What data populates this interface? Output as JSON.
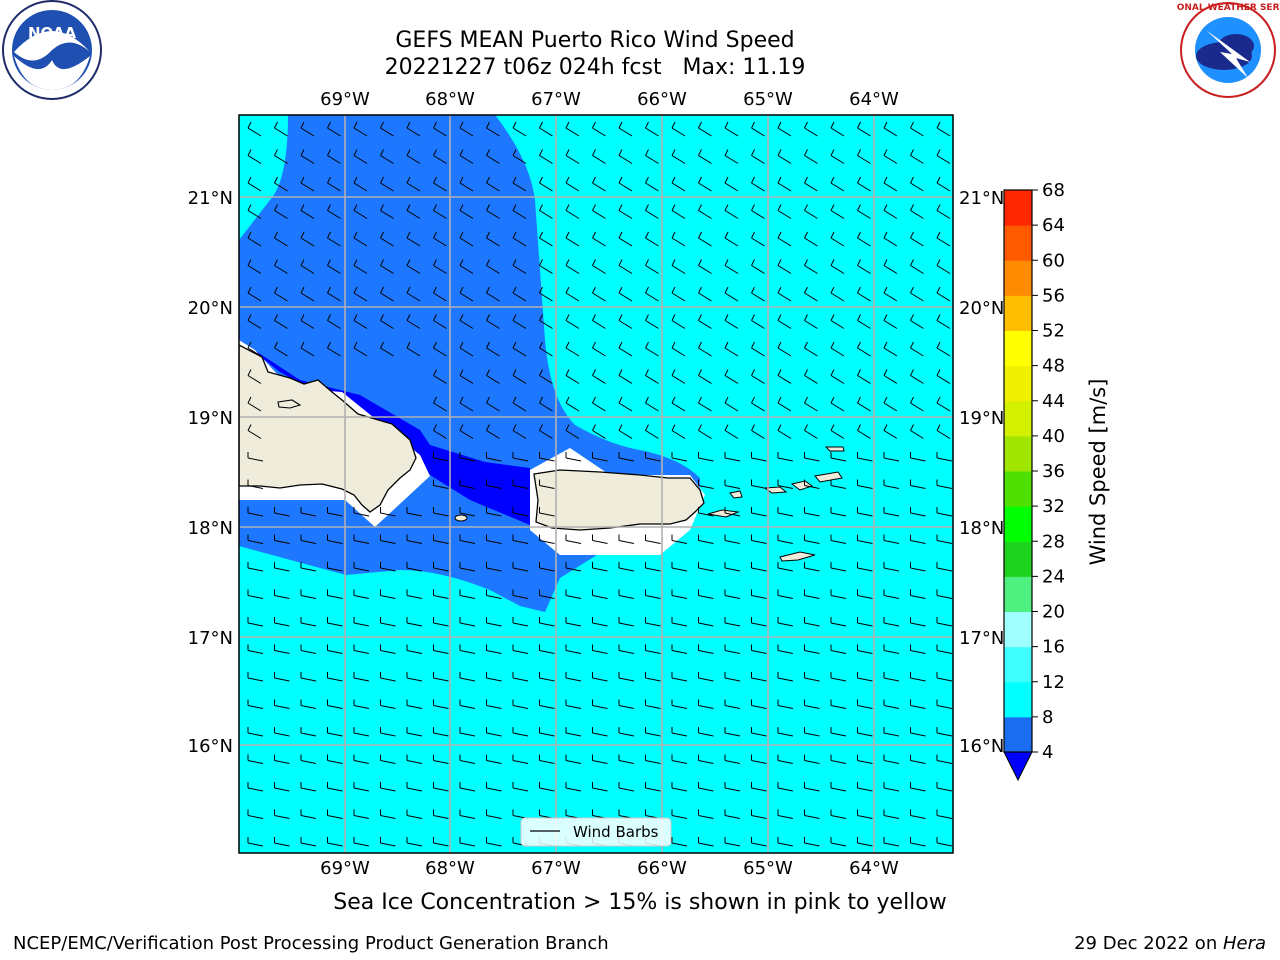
{
  "title_line1": "GEFS MEAN Puerto Rico Wind Speed",
  "title_line2": "20221227 t06z 024h fcst   Max: 11.19",
  "caption": "Sea Ice Concentration > 15% is shown in pink to yellow",
  "footer_left": "NCEP/EMC/Verification Post Processing Product Generation Branch",
  "footer_date": "29 Dec 2022 on ",
  "footer_host": "Hera",
  "logo_left_text": "NOAA",
  "logo_right_text": "NATIONAL WEATHER SERVICE",
  "legend_label": "Wind Barbs",
  "colorbar": {
    "label": "Wind Speed [m/s]",
    "ticks": [
      "4",
      "8",
      "12",
      "16",
      "20",
      "24",
      "28",
      "32",
      "36",
      "40",
      "44",
      "48",
      "52",
      "56",
      "60",
      "64",
      "68"
    ],
    "colors": [
      "#1a6df0",
      "#00ffff",
      "#40ffff",
      "#a0ffff",
      "#50f080",
      "#1ed21e",
      "#00ff00",
      "#50e000",
      "#a0e600",
      "#d2f000",
      "#f0f000",
      "#ffff00",
      "#ffbe00",
      "#ff8c00",
      "#ff5a00",
      "#ff2800",
      "#ff0000"
    ],
    "extend_color": "#0000ff"
  },
  "axes": {
    "lon_labels": [
      "69°W",
      "68°W",
      "67°W",
      "66°W",
      "65°W",
      "64°W"
    ],
    "lat_labels": [
      "21°N",
      "20°N",
      "19°N",
      "18°N",
      "17°N",
      "16°N"
    ]
  },
  "colors": {
    "bg_light": "#00ffff",
    "bg_mid": "#1e78ff",
    "bg_dark": "#0000ff",
    "land": "#efecdc"
  }
}
